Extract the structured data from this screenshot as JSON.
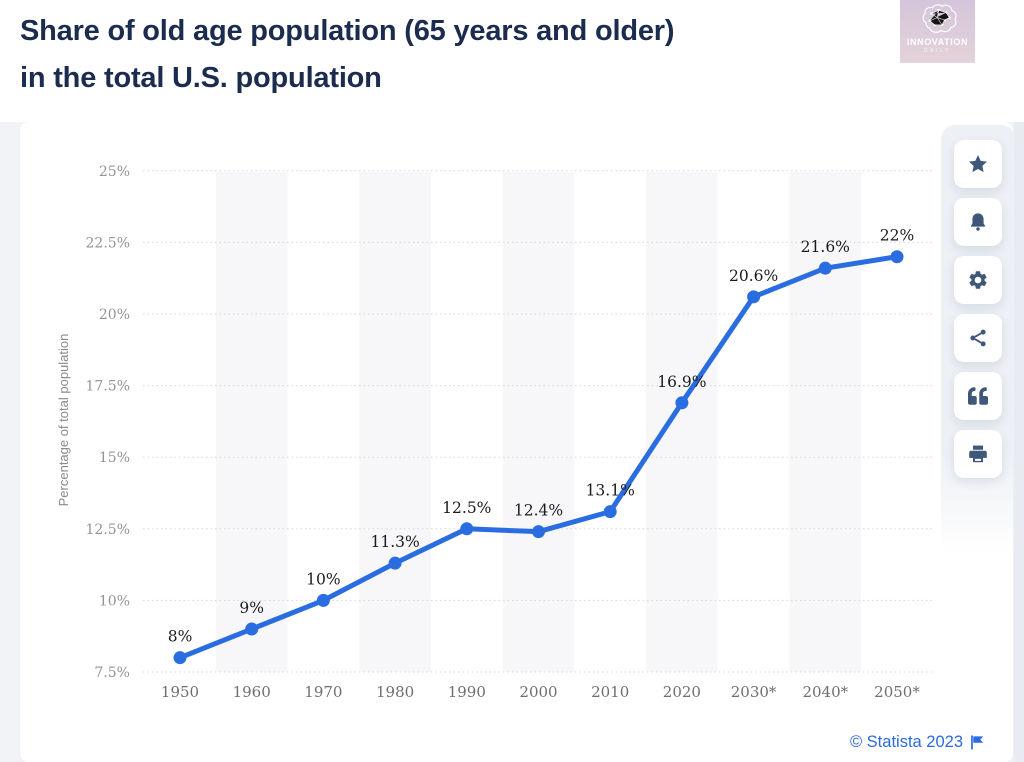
{
  "header": {
    "title_line1": "Share of old age population (65 years and older)",
    "title_line2": "in the total U.S. population",
    "logo": {
      "icon": "brain-network-icon",
      "line1": "INNOVATION",
      "line2": "DAILY"
    }
  },
  "toolbar": {
    "buttons": [
      {
        "name": "favorite",
        "icon": "star-icon"
      },
      {
        "name": "alerts",
        "icon": "bell-icon"
      },
      {
        "name": "settings",
        "icon": "gear-icon"
      },
      {
        "name": "share",
        "icon": "share-icon"
      },
      {
        "name": "cite",
        "icon": "quote-icon"
      },
      {
        "name": "print",
        "icon": "printer-icon"
      }
    ]
  },
  "chart_data": {
    "type": "line",
    "categories": [
      "1950",
      "1960",
      "1970",
      "1980",
      "1990",
      "2000",
      "2010",
      "2020",
      "2030*",
      "2040*",
      "2050*"
    ],
    "values": [
      8,
      9,
      10,
      11.3,
      12.5,
      12.4,
      13.1,
      16.9,
      20.6,
      21.6,
      22
    ],
    "point_labels": [
      "8%",
      "9%",
      "10%",
      "11.3%",
      "12.5%",
      "12.4%",
      "13.1%",
      "16.9%",
      "20.6%",
      "21.6%",
      "22%"
    ],
    "title": "Share of old age population (65 years and older) in the total U.S. population",
    "xlabel": "",
    "ylabel": "Percentage of total population",
    "ylim": [
      7.5,
      25
    ],
    "y_ticks": [
      25,
      22.5,
      20,
      17.5,
      15,
      12.5,
      10,
      7.5
    ],
    "y_tick_labels": [
      "25%",
      "22.5%",
      "20%",
      "17.5%",
      "15%",
      "12.5%",
      "10%",
      "7.5%"
    ],
    "grid": "horizontal-dotted",
    "legend": "none",
    "banded_categories": [
      "1960",
      "1980",
      "2000",
      "2020",
      "2040*"
    ],
    "colors": {
      "line": "#2a6de1",
      "marker": "#2a6de1",
      "grid": "#d7d7d7",
      "band": "#f7f7f9",
      "data_label": "#1b1b1b",
      "y_tick_label": "#949494",
      "x_tick_label": "#6f6f6f",
      "axis_title": "#8a8a8a"
    }
  },
  "footer": {
    "credit": "© Statista 2023",
    "flag_icon": "flag-icon",
    "credit_color": "#2b6adf"
  }
}
